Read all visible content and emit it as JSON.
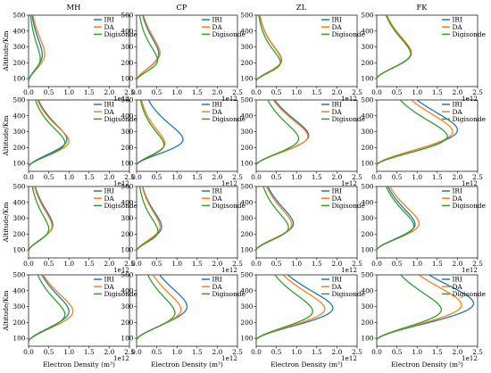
{
  "chart_data": {
    "type": "line",
    "layout": "4x4 grid of panels",
    "columns": [
      "MH",
      "CP",
      "ZL",
      "FK"
    ],
    "ylabel": "Altitude/Km",
    "xlabel": "Electron Density (m³)",
    "x_multiplier": "1e12",
    "xlim": [
      0,
      2.5
    ],
    "ylim": [
      50,
      500
    ],
    "xticks": [
      "0.0",
      "0.5",
      "1.0",
      "1.5",
      "2.0",
      "2.5"
    ],
    "yticks": [
      "100",
      "200",
      "300",
      "400",
      "500"
    ],
    "legend": {
      "placement": "top-right",
      "entries": [
        "IRI",
        "DA",
        "Digisonde"
      ]
    },
    "colors": {
      "IRI": "#1f77b4",
      "DA": "#ff7f0e",
      "Digisonde": "#2ca02c"
    },
    "panels": [
      {
        "row": 0,
        "col": 0,
        "series": {
          "IRI": {
            "peak_density": 0.34,
            "peak_altitude": 250,
            "base_altitude": 85
          },
          "DA": {
            "peak_density": 0.4,
            "peak_altitude": 255,
            "base_altitude": 85
          },
          "Digisonde": {
            "peak_density": 0.29,
            "peak_altitude": 225,
            "base_altitude": 85
          }
        }
      },
      {
        "row": 0,
        "col": 1,
        "series": {
          "IRI": {
            "peak_density": 0.55,
            "peak_altitude": 255,
            "base_altitude": 90
          },
          "DA": {
            "peak_density": 0.58,
            "peak_altitude": 260,
            "base_altitude": 90
          },
          "Digisonde": {
            "peak_density": 0.52,
            "peak_altitude": 215,
            "base_altitude": 90
          }
        }
      },
      {
        "row": 0,
        "col": 2,
        "series": {
          "IRI": {
            "peak_density": 0.63,
            "peak_altitude": 215,
            "base_altitude": 85
          },
          "DA": {
            "peak_density": 0.62,
            "peak_altitude": 215,
            "base_altitude": 85
          },
          "Digisonde": {
            "peak_density": 0.6,
            "peak_altitude": 200,
            "base_altitude": 85
          }
        }
      },
      {
        "row": 0,
        "col": 3,
        "series": {
          "IRI": {
            "peak_density": 0.85,
            "peak_altitude": 260,
            "base_altitude": 100
          },
          "DA": {
            "peak_density": 0.86,
            "peak_altitude": 260,
            "base_altitude": 100
          },
          "Digisonde": {
            "peak_density": 0.84,
            "peak_altitude": 255,
            "base_altitude": 100
          }
        }
      },
      {
        "row": 1,
        "col": 0,
        "series": {
          "IRI": {
            "peak_density": 0.95,
            "peak_altitude": 250,
            "base_altitude": 80
          },
          "DA": {
            "peak_density": 1.0,
            "peak_altitude": 240,
            "base_altitude": 80
          },
          "Digisonde": {
            "peak_density": 0.9,
            "peak_altitude": 230,
            "base_altitude": 80
          }
        }
      },
      {
        "row": 1,
        "col": 1,
        "series": {
          "IRI": {
            "peak_density": 1.15,
            "peak_altitude": 250,
            "base_altitude": 90
          },
          "DA": {
            "peak_density": 0.7,
            "peak_altitude": 225,
            "base_altitude": 90
          },
          "Digisonde": {
            "peak_density": 0.68,
            "peak_altitude": 215,
            "base_altitude": 90
          }
        }
      },
      {
        "row": 1,
        "col": 2,
        "series": {
          "IRI": {
            "peak_density": 1.3,
            "peak_altitude": 275,
            "base_altitude": 90
          },
          "DA": {
            "peak_density": 1.28,
            "peak_altitude": 270,
            "base_altitude": 90
          },
          "Digisonde": {
            "peak_density": 1.05,
            "peak_altitude": 255,
            "base_altitude": 90
          }
        }
      },
      {
        "row": 1,
        "col": 3,
        "series": {
          "IRI": {
            "peak_density": 2.0,
            "peak_altitude": 310,
            "base_altitude": 90
          },
          "DA": {
            "peak_density": 1.88,
            "peak_altitude": 300,
            "base_altitude": 90
          },
          "Digisonde": {
            "peak_density": 1.75,
            "peak_altitude": 270,
            "base_altitude": 90
          }
        }
      },
      {
        "row": 2,
        "col": 0,
        "series": {
          "IRI": {
            "peak_density": 0.6,
            "peak_altitude": 255,
            "base_altitude": 95
          },
          "DA": {
            "peak_density": 0.58,
            "peak_altitude": 250,
            "base_altitude": 95
          },
          "Digisonde": {
            "peak_density": 0.5,
            "peak_altitude": 230,
            "base_altitude": 95
          }
        }
      },
      {
        "row": 2,
        "col": 1,
        "series": {
          "IRI": {
            "peak_density": 0.62,
            "peak_altitude": 245,
            "base_altitude": 95
          },
          "DA": {
            "peak_density": 0.58,
            "peak_altitude": 245,
            "base_altitude": 95
          },
          "Digisonde": {
            "peak_density": 0.53,
            "peak_altitude": 215,
            "base_altitude": 95
          }
        }
      },
      {
        "row": 2,
        "col": 2,
        "series": {
          "IRI": {
            "peak_density": 0.92,
            "peak_altitude": 265,
            "base_altitude": 100
          },
          "DA": {
            "peak_density": 0.88,
            "peak_altitude": 260,
            "base_altitude": 100
          },
          "Digisonde": {
            "peak_density": 0.8,
            "peak_altitude": 240,
            "base_altitude": 100
          }
        }
      },
      {
        "row": 2,
        "col": 3,
        "series": {
          "IRI": {
            "peak_density": 0.95,
            "peak_altitude": 260,
            "base_altitude": 100
          },
          "DA": {
            "peak_density": 1.05,
            "peak_altitude": 265,
            "base_altitude": 100
          },
          "Digisonde": {
            "peak_density": 0.92,
            "peak_altitude": 250,
            "base_altitude": 100
          }
        }
      },
      {
        "row": 3,
        "col": 0,
        "series": {
          "IRI": {
            "peak_density": 1.0,
            "peak_altitude": 270,
            "base_altitude": 80
          },
          "DA": {
            "peak_density": 1.1,
            "peak_altitude": 270,
            "base_altitude": 80
          },
          "Digisonde": {
            "peak_density": 0.9,
            "peak_altitude": 250,
            "base_altitude": 80
          }
        }
      },
      {
        "row": 3,
        "col": 1,
        "series": {
          "IRI": {
            "peak_density": 1.25,
            "peak_altitude": 300,
            "base_altitude": 90
          },
          "DA": {
            "peak_density": 1.1,
            "peak_altitude": 280,
            "base_altitude": 90
          },
          "Digisonde": {
            "peak_density": 0.95,
            "peak_altitude": 260,
            "base_altitude": 90
          }
        }
      },
      {
        "row": 3,
        "col": 2,
        "series": {
          "IRI": {
            "peak_density": 1.9,
            "peak_altitude": 290,
            "base_altitude": 90
          },
          "DA": {
            "peak_density": 1.7,
            "peak_altitude": 285,
            "base_altitude": 90
          },
          "Digisonde": {
            "peak_density": 1.4,
            "peak_altitude": 270,
            "base_altitude": 90
          }
        }
      },
      {
        "row": 3,
        "col": 3,
        "series": {
          "IRI": {
            "peak_density": 2.4,
            "peak_altitude": 320,
            "base_altitude": 90
          },
          "DA": {
            "peak_density": 2.1,
            "peak_altitude": 310,
            "base_altitude": 90
          },
          "Digisonde": {
            "peak_density": 1.6,
            "peak_altitude": 280,
            "base_altitude": 90
          }
        }
      }
    ]
  }
}
